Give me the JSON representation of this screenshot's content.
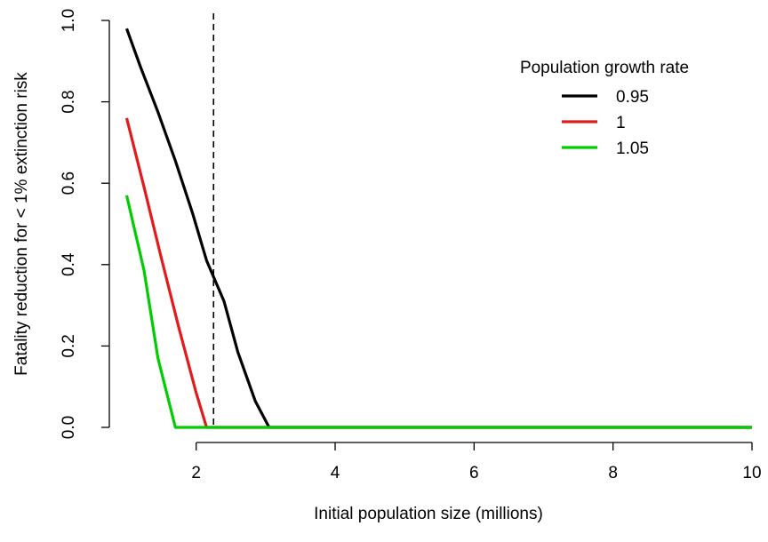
{
  "chart_data": {
    "type": "line",
    "title": "",
    "xlabel": "Initial population size (millions)",
    "ylabel": "Fatality reduction for < 1% extinction risk",
    "xlim": [
      0.75,
      10
    ],
    "ylim": [
      0,
      1
    ],
    "xticks": [
      2,
      4,
      6,
      8,
      10
    ],
    "yticks": [
      0.0,
      0.2,
      0.4,
      0.6,
      0.8,
      1.0
    ],
    "xtick_labels": [
      "2",
      "4",
      "6",
      "8",
      "10"
    ],
    "ytick_labels": [
      "0.0",
      "0.2",
      "0.4",
      "0.6",
      "0.8",
      "1.0"
    ],
    "grid": false,
    "legend_title": "Population growth rate",
    "legend_position": "top-right",
    "reference_line": {
      "orientation": "vertical",
      "x": 2.25,
      "style": "dashed",
      "color": "#000000"
    },
    "series": [
      {
        "name": "0.95",
        "color": "#000000",
        "x": [
          1.0,
          1.2,
          1.45,
          1.7,
          1.95,
          2.15,
          2.4,
          2.6,
          2.85,
          3.05,
          4,
          6,
          8,
          10
        ],
        "y": [
          0.98,
          0.885,
          0.775,
          0.655,
          0.525,
          0.41,
          0.31,
          0.185,
          0.065,
          0.0,
          0.0,
          0.0,
          0.0,
          0.0
        ]
      },
      {
        "name": "1",
        "color": "#e31a1c",
        "x": [
          1.0,
          1.25,
          1.5,
          1.75,
          2.0,
          2.15,
          4,
          6,
          8,
          10
        ],
        "y": [
          0.76,
          0.59,
          0.415,
          0.245,
          0.085,
          0.0,
          0.0,
          0.0,
          0.0,
          0.0
        ]
      },
      {
        "name": "1.05",
        "color": "#00cd00",
        "x": [
          1.0,
          1.25,
          1.45,
          1.7,
          4,
          6,
          8,
          10
        ],
        "y": [
          0.57,
          0.385,
          0.17,
          0.0,
          0.0,
          0.0,
          0.0,
          0.0
        ]
      }
    ]
  }
}
